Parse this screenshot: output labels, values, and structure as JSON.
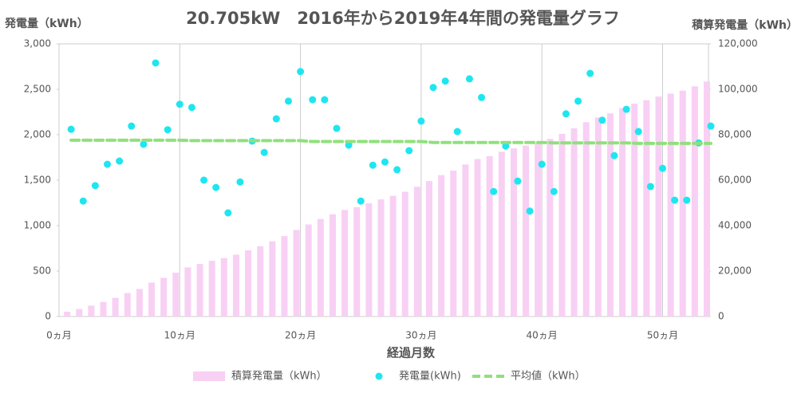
{
  "chart_data": {
    "type": "combo",
    "title": "20.705kW　2016年から2019年4年間の発電量グラフ",
    "y_label": "発電量（kWh）",
    "y2_label": "積算発電量（kWh）",
    "x_label": "経過月数",
    "x": [
      1,
      2,
      3,
      4,
      5,
      6,
      7,
      8,
      9,
      10,
      11,
      12,
      13,
      14,
      15,
      16,
      17,
      18,
      19,
      20,
      21,
      22,
      23,
      24,
      25,
      26,
      27,
      28,
      29,
      30,
      31,
      32,
      33,
      34,
      35,
      36,
      37,
      38,
      39,
      40,
      41,
      42,
      43,
      44,
      45,
      46,
      47,
      48,
      49,
      50,
      51,
      52,
      53,
      54
    ],
    "xlim": [
      0,
      54
    ],
    "xticks": [
      {
        "value": 0,
        "label": "0ヵ月"
      },
      {
        "value": 10,
        "label": "10ヵ月"
      },
      {
        "value": 20,
        "label": "20ヵ月"
      },
      {
        "value": 30,
        "label": "30ヵ月"
      },
      {
        "value": 40,
        "label": "40ヵ月"
      },
      {
        "value": 50,
        "label": "50ヵ月"
      }
    ],
    "ylim": [
      0,
      3000
    ],
    "yticks": [
      0,
      500,
      {
        "value": 1000,
        "label": "1,000"
      },
      {
        "value": 1500,
        "label": "1,500"
      },
      {
        "value": 2000,
        "label": "2,000"
      },
      {
        "value": 2500,
        "label": "2,500"
      },
      {
        "value": 3000,
        "label": "3,000"
      }
    ],
    "y2lim": [
      0,
      120000
    ],
    "y2ticks": [
      0,
      {
        "value": 20000,
        "label": "20,000"
      },
      {
        "value": 40000,
        "label": "40,000"
      },
      {
        "value": 60000,
        "label": "60,000"
      },
      {
        "value": 80000,
        "label": "80,000"
      },
      {
        "value": 100000,
        "label": "100,000"
      },
      {
        "value": 120000,
        "label": "120,000"
      }
    ],
    "xgrid": true,
    "series": [
      {
        "name": "積算発電量（kWh）",
        "type": "bar",
        "axis": "y2",
        "color": "#f8d0f4",
        "values": [
          2100,
          3300,
          4800,
          6400,
          8200,
          10300,
          12100,
          14900,
          17000,
          19300,
          21600,
          23100,
          24500,
          25700,
          27200,
          29100,
          30900,
          33100,
          35400,
          38100,
          40500,
          42900,
          45000,
          46900,
          48100,
          49800,
          51500,
          53100,
          54900,
          57100,
          59600,
          62200,
          64200,
          66900,
          69300,
          70600,
          72500,
          74000,
          75200,
          76800,
          78200,
          80400,
          82800,
          85500,
          87600,
          89400,
          91700,
          93700,
          95200,
          96800,
          98100,
          99400,
          101300,
          103400
        ]
      },
      {
        "name": "発電量(kWh)",
        "type": "scatter",
        "color": "#1ee6f0",
        "values": [
          2060,
          1270,
          1440,
          1675,
          1710,
          2095,
          1895,
          2790,
          2055,
          2335,
          2300,
          1500,
          1420,
          1140,
          1480,
          1930,
          1805,
          2175,
          2370,
          2695,
          2385,
          2385,
          2070,
          1885,
          1270,
          1665,
          1700,
          1615,
          1825,
          2150,
          2520,
          2590,
          2035,
          2615,
          2410,
          1375,
          1875,
          1490,
          1160,
          1675,
          1375,
          2230,
          2370,
          2675,
          2160,
          1770,
          2280,
          2035,
          1430,
          1630,
          1280,
          1280,
          1910,
          2095
        ]
      },
      {
        "name": "平均値（kWh）",
        "type": "line",
        "dashed": true,
        "color": "#90e07c",
        "values": [
          1940,
          1940,
          1940,
          1940,
          1940,
          1940,
          1940,
          1940,
          1940,
          1940,
          1935,
          1935,
          1935,
          1935,
          1935,
          1935,
          1935,
          1935,
          1935,
          1935,
          1925,
          1925,
          1925,
          1925,
          1925,
          1925,
          1925,
          1925,
          1925,
          1925,
          1915,
          1915,
          1915,
          1915,
          1915,
          1915,
          1915,
          1915,
          1915,
          1915,
          1910,
          1910,
          1910,
          1910,
          1910,
          1910,
          1910,
          1905,
          1905,
          1905,
          1905,
          1905,
          1905,
          1905
        ]
      }
    ]
  }
}
